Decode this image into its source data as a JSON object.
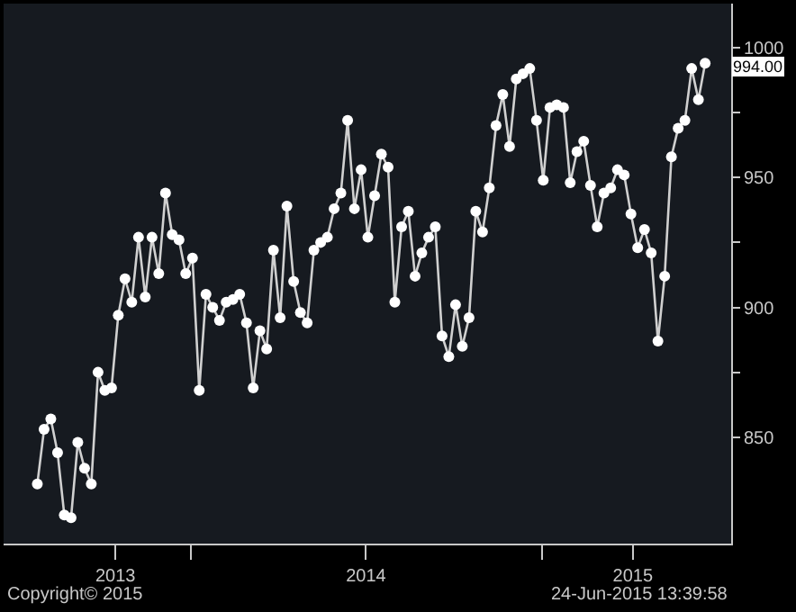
{
  "chart_data": {
    "type": "line",
    "marker": "circle",
    "line_style": "solid",
    "grid": false,
    "x": [
      "2013-07-26",
      "2013-08-02",
      "2013-08-09",
      "2013-08-16",
      "2013-08-23",
      "2013-08-30",
      "2013-09-06",
      "2013-09-13",
      "2013-09-20",
      "2013-09-27",
      "2013-10-04",
      "2013-10-11",
      "2013-10-18",
      "2013-10-25",
      "2013-11-01",
      "2013-11-08",
      "2013-11-15",
      "2013-11-22",
      "2013-11-29",
      "2013-12-06",
      "2013-12-13",
      "2013-12-20",
      "2013-12-27",
      "2014-01-03",
      "2014-01-10",
      "2014-01-17",
      "2014-01-24",
      "2014-01-31",
      "2014-02-07",
      "2014-02-14",
      "2014-02-21",
      "2014-02-28",
      "2014-03-07",
      "2014-03-14",
      "2014-03-21",
      "2014-03-28",
      "2014-04-04",
      "2014-04-11",
      "2014-04-18",
      "2014-04-25",
      "2014-05-02",
      "2014-05-09",
      "2014-05-16",
      "2014-05-23",
      "2014-05-30",
      "2014-06-06",
      "2014-06-13",
      "2014-06-20",
      "2014-06-27",
      "2014-07-04",
      "2014-07-11",
      "2014-07-18",
      "2014-07-25",
      "2014-08-01",
      "2014-08-08",
      "2014-08-15",
      "2014-08-22",
      "2014-08-29",
      "2014-09-05",
      "2014-09-12",
      "2014-09-19",
      "2014-09-26",
      "2014-10-03",
      "2014-10-10",
      "2014-10-17",
      "2014-10-24",
      "2014-10-31",
      "2014-11-07",
      "2014-11-14",
      "2014-11-21",
      "2014-11-28",
      "2014-12-05",
      "2014-12-12",
      "2014-12-19",
      "2014-12-26",
      "2015-01-02",
      "2015-01-09",
      "2015-01-16",
      "2015-01-23",
      "2015-01-30",
      "2015-02-06",
      "2015-02-13",
      "2015-02-20",
      "2015-02-27",
      "2015-03-06",
      "2015-03-13",
      "2015-03-20",
      "2015-03-27",
      "2015-04-03",
      "2015-04-10",
      "2015-04-17",
      "2015-04-24",
      "2015-05-01",
      "2015-05-08",
      "2015-05-15",
      "2015-05-22",
      "2015-05-29",
      "2015-06-05",
      "2015-06-12",
      "2015-06-19"
    ],
    "series": [
      {
        "color": "#d0d0d0",
        "values": [
          832,
          853,
          857,
          844,
          820,
          819,
          848,
          838,
          832,
          875,
          868,
          869,
          897,
          911,
          902,
          927,
          904,
          927,
          913,
          944,
          928,
          926,
          913,
          919,
          868,
          905,
          900,
          895,
          902,
          903,
          905,
          894,
          869,
          891,
          884,
          922,
          896,
          939,
          910,
          898,
          894,
          922,
          925,
          927,
          938,
          944,
          972,
          938,
          953,
          927,
          943,
          959,
          954,
          902,
          931,
          937,
          912,
          921,
          927,
          931,
          889,
          881,
          901,
          885,
          896,
          937,
          929,
          946,
          970,
          982,
          962,
          988,
          990,
          992,
          972,
          949,
          977,
          978,
          977,
          948,
          960,
          964,
          947,
          931,
          944,
          946,
          953,
          951,
          936,
          923,
          930,
          921,
          887,
          912,
          958,
          969,
          972,
          992,
          980,
          994
        ]
      }
    ],
    "ylim": [
      809,
      1017
    ],
    "yticks": [
      {
        "value": 850,
        "label": "850"
      },
      {
        "value": 875,
        "label": null
      },
      {
        "value": 900,
        "label": "900"
      },
      {
        "value": 925,
        "label": null
      },
      {
        "value": 950,
        "label": "950"
      },
      {
        "value": 975,
        "label": null
      },
      {
        "value": 1000,
        "label": "1000"
      }
    ],
    "xlim": [
      "2013-06-21",
      "2015-07-16"
    ],
    "xticks": [
      {
        "value": "2013-10-15",
        "label": "2013"
      },
      {
        "value": "2014-01-01",
        "label": null
      },
      {
        "value": "2014-07-02",
        "label": "2014"
      },
      {
        "value": "2015-01-01",
        "label": null
      },
      {
        "value": "2015-04-05",
        "label": "2015"
      }
    ],
    "annotations": [
      {
        "text": "994.00",
        "x": "2015-06-19",
        "y": 994
      },
      "Copyright© 2015",
      "24-Jun-2015 13:39:58"
    ]
  }
}
